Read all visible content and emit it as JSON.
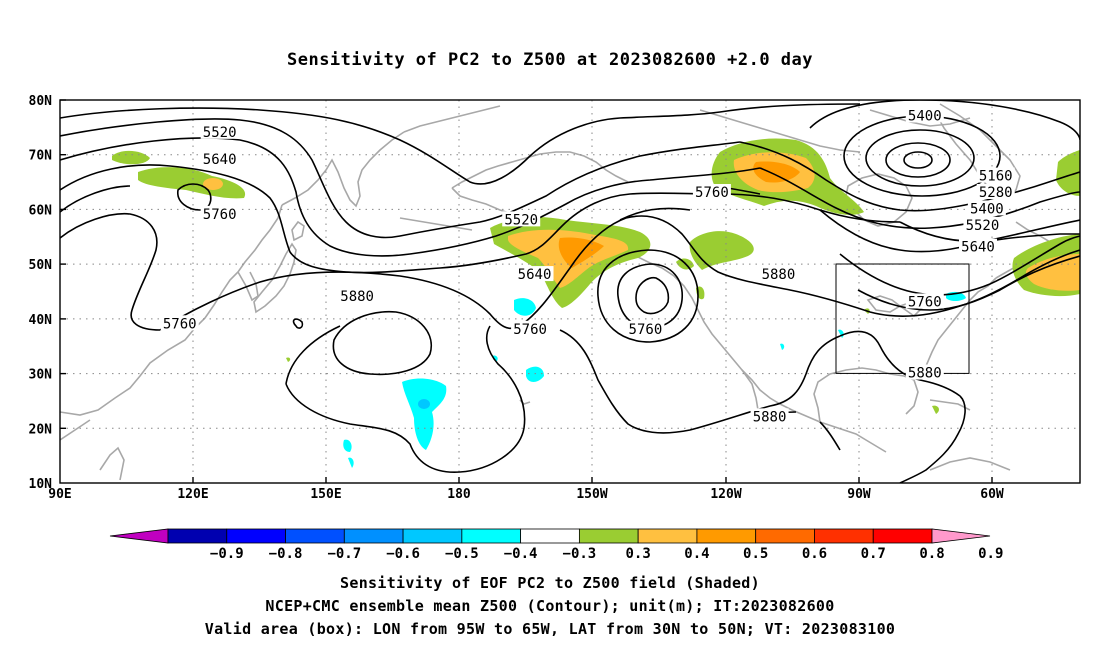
{
  "title": "Sensitivity of PC2 to Z500 at 2023082600 +2.0 day",
  "lat_labels": [
    "80N",
    "70N",
    "60N",
    "50N",
    "40N",
    "30N",
    "20N",
    "10N"
  ],
  "lon_labels": [
    "90E",
    "120E",
    "150E",
    "180",
    "150W",
    "120W",
    "90W",
    "60W"
  ],
  "map_extent": {
    "lon_min": 90,
    "lon_max": 320,
    "lat_min": 10,
    "lat_max": 80
  },
  "valid_box": {
    "lon_west": 265,
    "lon_east": 295,
    "lat_south": 30,
    "lat_north": 50
  },
  "contour_labels": [
    {
      "text": "5520",
      "lon": 126,
      "lat": 74
    },
    {
      "text": "5640",
      "lon": 126,
      "lat": 69
    },
    {
      "text": "5760",
      "lon": 126,
      "lat": 59
    },
    {
      "text": "5760",
      "lon": 117,
      "lat": 39
    },
    {
      "text": "5880",
      "lon": 157,
      "lat": 44
    },
    {
      "text": "5520",
      "lon": 194,
      "lat": 58
    },
    {
      "text": "5640",
      "lon": 197,
      "lat": 48
    },
    {
      "text": "5760",
      "lon": 196,
      "lat": 38
    },
    {
      "text": "5760",
      "lon": 222,
      "lat": 38
    },
    {
      "text": "5760",
      "lon": 237,
      "lat": 63
    },
    {
      "text": "5880",
      "lon": 252,
      "lat": 48
    },
    {
      "text": "5880",
      "lon": 250,
      "lat": 22
    },
    {
      "text": "5400",
      "lon": 285,
      "lat": 77
    },
    {
      "text": "5160",
      "lon": 301,
      "lat": 66
    },
    {
      "text": "5280",
      "lon": 301,
      "lat": 63
    },
    {
      "text": "5400",
      "lon": 299,
      "lat": 60
    },
    {
      "text": "5520",
      "lon": 298,
      "lat": 57
    },
    {
      "text": "5640",
      "lon": 297,
      "lat": 53
    },
    {
      "text": "5760",
      "lon": 285,
      "lat": 43
    },
    {
      "text": "5880",
      "lon": 285,
      "lat": 30
    }
  ],
  "colorbar": {
    "labels": [
      "−0.9",
      "−0.8",
      "−0.7",
      "−0.6",
      "−0.5",
      "−0.4",
      "−0.3",
      "0.3",
      "0.4",
      "0.5",
      "0.6",
      "0.7",
      "0.8",
      "0.9"
    ],
    "colors": [
      "#c000c0",
      "#0000b0",
      "#0000ff",
      "#0050ff",
      "#0090ff",
      "#00c8ff",
      "#00ffff",
      "#ffffff",
      "#9acd32",
      "#ffc040",
      "#ff9a00",
      "#ff6a00",
      "#ff3000",
      "#ff0000",
      "#ff99cc"
    ]
  },
  "captions": [
    "Sensitivity of EOF PC2 to Z500 field (Shaded)",
    "NCEP+CMC ensemble mean Z500 (Contour); unit(m); IT:2023082600",
    "Valid area (box): LON from 95W to 65W, LAT from 30N to 50N; VT: 2023083100"
  ]
}
